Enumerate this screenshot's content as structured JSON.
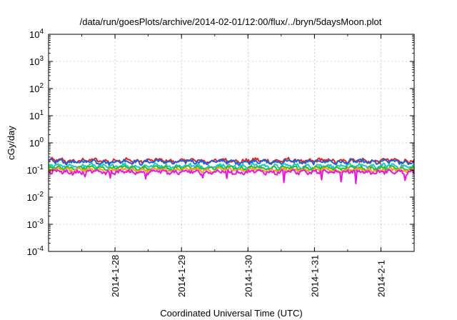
{
  "chart_data": {
    "type": "line",
    "title": "/data/run/goesPlots/archive/2014-02-01/12:00/flux/../bryn/5daysMoon.plot",
    "xlabel": "Coordinated Universal Time (UTC)",
    "ylabel": "cGy/day",
    "yscale": "log",
    "ylim": [
      0.0001,
      10000
    ],
    "xlim": [
      "2014-01-27 00:00",
      "2014-02-01 12:00"
    ],
    "x_ticks": [
      "2014-1-28",
      "2014-1-29",
      "2014-1-30",
      "2014-1-31",
      "2014-2-1"
    ],
    "y_ticks": [
      {
        "base": "10",
        "exp": "-4"
      },
      {
        "base": "10",
        "exp": "-3"
      },
      {
        "base": "10",
        "exp": "-2"
      },
      {
        "base": "10",
        "exp": "-1"
      },
      {
        "base": "10",
        "exp": "0"
      },
      {
        "base": "10",
        "exp": "1"
      },
      {
        "base": "10",
        "exp": "2"
      },
      {
        "base": "10",
        "exp": "3"
      },
      {
        "base": "10",
        "exp": "4"
      }
    ],
    "grid": true,
    "series": [
      {
        "color": "#e8211d",
        "approx_level": 0.22,
        "variation_low": 0.15,
        "variation_high": 0.3
      },
      {
        "color": "#1f5fd6",
        "approx_level": 0.2,
        "variation_low": 0.12,
        "variation_high": 0.28
      },
      {
        "color": "#19c8c8",
        "approx_level": 0.14,
        "variation_low": 0.1,
        "variation_high": 0.18
      },
      {
        "color": "#2db82d",
        "approx_level": 0.12,
        "variation_low": 0.1,
        "variation_high": 0.14
      },
      {
        "color": "#f0a020",
        "approx_level": 0.1,
        "variation_low": 0.08,
        "variation_high": 0.12
      },
      {
        "color": "#ee12e4",
        "approx_level": 0.085,
        "variation_low": 0.03,
        "variation_high": 0.1
      }
    ]
  }
}
